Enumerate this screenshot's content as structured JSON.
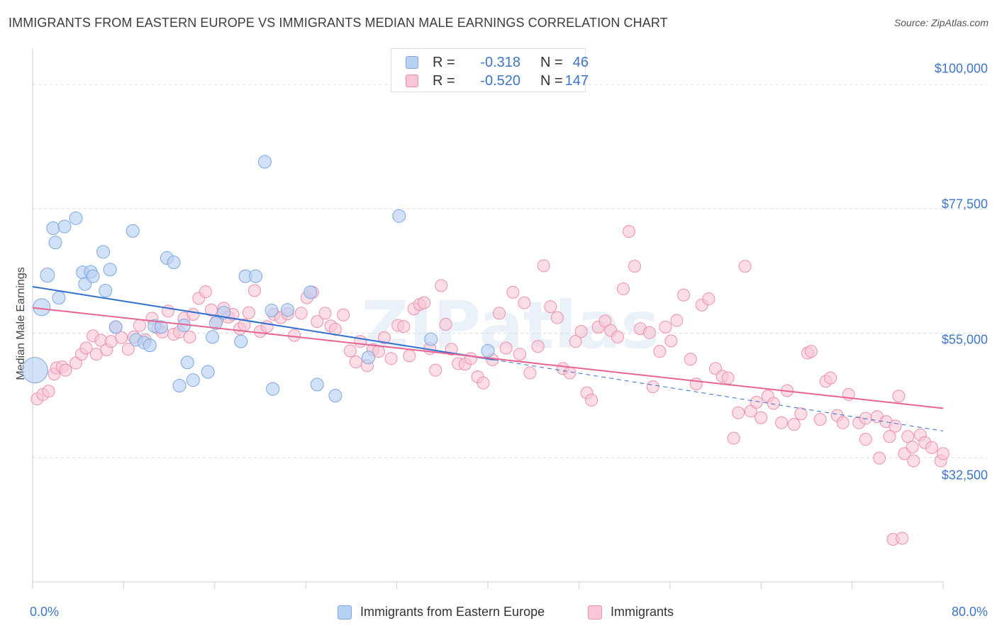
{
  "header": {
    "title": "IMMIGRANTS FROM EASTERN EUROPE VS IMMIGRANTS MEDIAN MALE EARNINGS CORRELATION CHART",
    "source": "Source: ZipAtlas.com"
  },
  "watermark": "ZIPatlas",
  "legend_stats": [
    {
      "r_label": "R =",
      "r_value": "-0.318",
      "n_label": "N =",
      "n_value": "46"
    },
    {
      "r_label": "R =",
      "r_value": "-0.520",
      "n_label": "N =",
      "n_value": "147"
    }
  ],
  "colors": {
    "blue_fill": "#b8d1f3",
    "blue_stroke": "#7da7e0",
    "blue_line": "#2f6fcf",
    "pink_fill": "#f9c6d5",
    "pink_stroke": "#ee8fae",
    "pink_line": "#e8648f",
    "tick_label": "#3d76c8",
    "grid": "#dcdcdc"
  },
  "chart_data": {
    "type": "scatter",
    "title": "IMMIGRANTS FROM EASTERN EUROPE VS IMMIGRANTS MEDIAN MALE EARNINGS CORRELATION CHART",
    "xlabel": "",
    "ylabel": "Median Male Earnings",
    "xlim": [
      0,
      80
    ],
    "ylim": [
      10000,
      105000
    ],
    "x_tick_labels": [
      "0.0%",
      "80.0%"
    ],
    "y_ticks": [
      {
        "value": 32500,
        "label": "$32,500"
      },
      {
        "value": 55000,
        "label": "$55,000"
      },
      {
        "value": 77500,
        "label": "$77,500"
      },
      {
        "value": 100000,
        "label": "$100,000"
      }
    ],
    "series": [
      {
        "name": "Immigrants from Eastern Europe",
        "color": "blue",
        "r": -0.318,
        "n": 46,
        "trend": {
          "x0": 0,
          "y0": 63400,
          "x1": 40.5,
          "y1": 50200,
          "dashed_to_x": 80,
          "dashed_to_y": 37300
        },
        "points": [
          [
            0.2,
            48300,
            18
          ],
          [
            0.8,
            59700,
            12
          ],
          [
            1.3,
            65500,
            10
          ],
          [
            1.8,
            74000,
            9
          ],
          [
            2.0,
            71400,
            9
          ],
          [
            2.3,
            61400,
            9
          ],
          [
            2.8,
            74300,
            9
          ],
          [
            3.8,
            75800,
            9
          ],
          [
            4.4,
            66000,
            9
          ],
          [
            4.6,
            63900,
            9
          ],
          [
            5.1,
            66100,
            9
          ],
          [
            5.3,
            65300,
            9
          ],
          [
            6.2,
            69700,
            9
          ],
          [
            6.4,
            62700,
            9
          ],
          [
            6.8,
            66500,
            9
          ],
          [
            7.3,
            56100,
            9
          ],
          [
            8.8,
            73500,
            9
          ],
          [
            9.1,
            53800,
            9
          ],
          [
            9.8,
            53300,
            9
          ],
          [
            10.3,
            52800,
            9
          ],
          [
            10.7,
            56300,
            9
          ],
          [
            11.3,
            56100,
            9
          ],
          [
            11.8,
            68600,
            9
          ],
          [
            12.4,
            67800,
            9
          ],
          [
            12.9,
            45500,
            9
          ],
          [
            13.3,
            56400,
            9
          ],
          [
            13.6,
            49700,
            9
          ],
          [
            14.1,
            46500,
            9
          ],
          [
            15.4,
            48000,
            9
          ],
          [
            15.8,
            54300,
            9
          ],
          [
            16.1,
            56800,
            9
          ],
          [
            16.8,
            58700,
            9
          ],
          [
            18.3,
            53500,
            9
          ],
          [
            18.7,
            65300,
            9
          ],
          [
            19.6,
            65300,
            9
          ],
          [
            20.4,
            86000,
            9
          ],
          [
            21.0,
            59100,
            9
          ],
          [
            21.1,
            44900,
            9
          ],
          [
            22.4,
            59200,
            9
          ],
          [
            24.4,
            62400,
            9
          ],
          [
            25.0,
            45700,
            9
          ],
          [
            26.6,
            43700,
            9
          ],
          [
            29.5,
            50600,
            9
          ],
          [
            32.2,
            76200,
            9
          ],
          [
            35.0,
            53900,
            9
          ],
          [
            40.0,
            51800,
            9
          ]
        ]
      },
      {
        "name": "Immigrants",
        "color": "pink",
        "r": -0.52,
        "n": 147,
        "trend": {
          "x0": 0,
          "y0": 59600,
          "x1": 80,
          "y1": 41400
        },
        "points": [
          [
            0.4,
            43100
          ],
          [
            0.9,
            43900
          ],
          [
            1.4,
            44500
          ],
          [
            1.9,
            47600
          ],
          [
            2.1,
            48700
          ],
          [
            2.6,
            48900
          ],
          [
            2.9,
            48300
          ],
          [
            3.8,
            49600
          ],
          [
            4.3,
            51200
          ],
          [
            4.7,
            52300
          ],
          [
            5.3,
            54500
          ],
          [
            5.6,
            51200
          ],
          [
            6.0,
            53700
          ],
          [
            6.5,
            52000
          ],
          [
            6.9,
            53500
          ],
          [
            7.3,
            56100
          ],
          [
            7.8,
            54200
          ],
          [
            8.4,
            52100
          ],
          [
            8.9,
            54300
          ],
          [
            9.4,
            56400
          ],
          [
            9.9,
            53800
          ],
          [
            10.5,
            57700
          ],
          [
            11.0,
            55900
          ],
          [
            11.4,
            55200
          ],
          [
            11.9,
            59000
          ],
          [
            12.4,
            54800
          ],
          [
            12.9,
            55200
          ],
          [
            13.3,
            57700
          ],
          [
            13.8,
            54300
          ],
          [
            14.1,
            58400
          ],
          [
            14.6,
            61300
          ],
          [
            15.2,
            62500
          ],
          [
            15.7,
            59200
          ],
          [
            16.2,
            57300
          ],
          [
            16.8,
            59500
          ],
          [
            17.2,
            57900
          ],
          [
            17.6,
            58400
          ],
          [
            18.2,
            55800
          ],
          [
            18.6,
            56500
          ],
          [
            19.0,
            58700
          ],
          [
            19.5,
            62700
          ],
          [
            20.0,
            55300
          ],
          [
            20.6,
            56200
          ],
          [
            21.2,
            58400
          ],
          [
            21.8,
            57800
          ],
          [
            22.4,
            58500
          ],
          [
            23.0,
            54600
          ],
          [
            23.6,
            58600
          ],
          [
            24.1,
            61400
          ],
          [
            24.6,
            62400
          ],
          [
            25.0,
            57100
          ],
          [
            25.7,
            58600
          ],
          [
            26.2,
            56300
          ],
          [
            26.6,
            55700
          ],
          [
            27.3,
            58300
          ],
          [
            27.9,
            51800
          ],
          [
            28.4,
            49800
          ],
          [
            28.8,
            53500
          ],
          [
            29.4,
            49100
          ],
          [
            29.9,
            52000
          ],
          [
            30.4,
            51700
          ],
          [
            30.9,
            54200
          ],
          [
            31.5,
            50400
          ],
          [
            32.1,
            56400
          ],
          [
            32.6,
            56200
          ],
          [
            33.1,
            50900
          ],
          [
            33.5,
            59400
          ],
          [
            34.0,
            60200
          ],
          [
            34.4,
            60500
          ],
          [
            34.9,
            52200
          ],
          [
            35.4,
            48300
          ],
          [
            35.9,
            63600
          ],
          [
            36.3,
            56600
          ],
          [
            36.8,
            52100
          ],
          [
            37.4,
            49500
          ],
          [
            38.0,
            49400
          ],
          [
            38.5,
            50400
          ],
          [
            39.1,
            47100
          ],
          [
            39.6,
            46000
          ],
          [
            40.4,
            50200
          ],
          [
            41.0,
            58600
          ],
          [
            41.6,
            52300
          ],
          [
            42.2,
            62400
          ],
          [
            42.8,
            51200
          ],
          [
            43.2,
            60500
          ],
          [
            43.7,
            47800
          ],
          [
            44.4,
            52600
          ],
          [
            44.9,
            67200
          ],
          [
            45.5,
            59800
          ],
          [
            46.1,
            57800
          ],
          [
            46.6,
            48600
          ],
          [
            47.2,
            47800
          ],
          [
            47.7,
            53500
          ],
          [
            48.2,
            55300
          ],
          [
            48.7,
            44200
          ],
          [
            49.1,
            42900
          ],
          [
            49.7,
            56100
          ],
          [
            50.3,
            57200
          ],
          [
            50.8,
            55500
          ],
          [
            51.4,
            54300
          ],
          [
            51.9,
            63000
          ],
          [
            52.4,
            73400
          ],
          [
            52.9,
            67100
          ],
          [
            53.4,
            55800
          ],
          [
            54.2,
            55100
          ],
          [
            54.5,
            45300
          ],
          [
            55.1,
            51700
          ],
          [
            55.6,
            56100
          ],
          [
            56.1,
            53600
          ],
          [
            56.6,
            57300
          ],
          [
            57.2,
            61900
          ],
          [
            57.8,
            50300
          ],
          [
            58.3,
            45800
          ],
          [
            58.8,
            60100
          ],
          [
            59.4,
            61200
          ],
          [
            60.0,
            48600
          ],
          [
            60.6,
            47200
          ],
          [
            61.1,
            46900
          ],
          [
            61.6,
            36000
          ],
          [
            62.0,
            40600
          ],
          [
            62.6,
            67100
          ],
          [
            63.1,
            40900
          ],
          [
            63.6,
            42500
          ],
          [
            64.0,
            39700
          ],
          [
            64.6,
            43600
          ],
          [
            65.1,
            42300
          ],
          [
            65.8,
            38800
          ],
          [
            66.3,
            44600
          ],
          [
            66.9,
            38500
          ],
          [
            67.5,
            40400
          ],
          [
            68.1,
            51400
          ],
          [
            68.4,
            51700
          ],
          [
            69.2,
            39400
          ],
          [
            69.7,
            46300
          ],
          [
            70.1,
            46900
          ],
          [
            70.7,
            40100
          ],
          [
            71.2,
            38800
          ],
          [
            71.7,
            43900
          ],
          [
            72.6,
            38800
          ],
          [
            73.2,
            39600
          ],
          [
            74.2,
            39900
          ],
          [
            75.0,
            39000
          ],
          [
            75.3,
            36300
          ],
          [
            75.8,
            38200
          ],
          [
            76.1,
            43600
          ],
          [
            76.6,
            33200
          ],
          [
            77.4,
            31900
          ]
        ]
      }
    ]
  },
  "extra_points_pink": [
    [
      73.2,
      35800
    ],
    [
      74.4,
      32400
    ],
    [
      75.6,
      17700
    ],
    [
      76.4,
      17900
    ],
    [
      76.9,
      36300
    ],
    [
      77.3,
      34400
    ],
    [
      78.0,
      36600
    ],
    [
      78.4,
      35200
    ],
    [
      79.0,
      34300
    ],
    [
      79.8,
      31900
    ],
    [
      80.0,
      33200
    ]
  ],
  "bottom_legend": [
    {
      "label": "Immigrants from Eastern Europe"
    },
    {
      "label": "Immigrants"
    }
  ]
}
